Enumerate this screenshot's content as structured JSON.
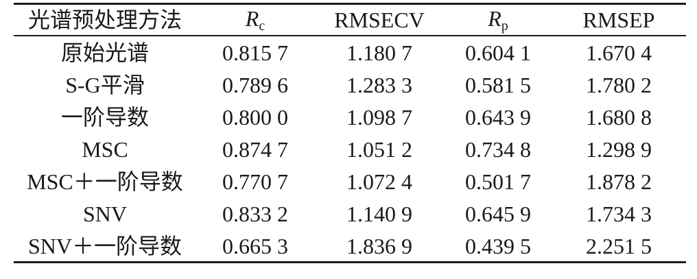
{
  "table": {
    "headers": {
      "method": "光谱预处理方法",
      "rc_main": "R",
      "rc_sub": "c",
      "rmsecv": "RMSECV",
      "rp_main": "R",
      "rp_sub": "p",
      "rmsep": "RMSEP"
    },
    "rows": [
      [
        "原始光谱",
        "0.815 7",
        "1.180 7",
        "0.604 1",
        "1.670 4"
      ],
      [
        "S-G平滑",
        "0.789 6",
        "1.283 3",
        "0.581 5",
        "1.780 2"
      ],
      [
        "一阶导数",
        "0.800 0",
        "1.098 7",
        "0.643 9",
        "1.680 8"
      ],
      [
        "MSC",
        "0.874 7",
        "1.051 2",
        "0.734 8",
        "1.298 9"
      ],
      [
        "MSC＋一阶导数",
        "0.770 7",
        "1.072 4",
        "0.501 7",
        "1.878 2"
      ],
      [
        "SNV",
        "0.833 2",
        "1.140 9",
        "0.645 9",
        "1.734 3"
      ],
      [
        "SNV＋一阶导数",
        "0.665 3",
        "1.836 9",
        "0.439 5",
        "2.251 5"
      ]
    ]
  }
}
